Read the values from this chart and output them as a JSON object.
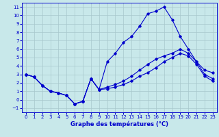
{
  "title": "Graphe des températures (°C)",
  "background_color": "#c8e8ea",
  "grid_color": "#a8c8cc",
  "line_color": "#0000cc",
  "xlim": [
    -0.5,
    23.5
  ],
  "ylim": [
    -1.5,
    11.5
  ],
  "xticks": [
    0,
    1,
    2,
    3,
    4,
    5,
    6,
    7,
    8,
    9,
    10,
    11,
    12,
    13,
    14,
    15,
    16,
    17,
    18,
    19,
    20,
    21,
    22,
    23
  ],
  "yticks": [
    -1,
    0,
    1,
    2,
    3,
    4,
    5,
    6,
    7,
    8,
    9,
    10,
    11
  ],
  "line1_x": [
    0,
    1,
    2,
    3,
    4,
    5,
    6,
    7,
    8,
    9,
    10,
    11,
    12,
    13,
    14,
    15,
    16,
    17,
    18,
    19,
    20,
    21,
    22,
    23
  ],
  "line1_y": [
    3.0,
    2.7,
    1.7,
    1.0,
    0.8,
    0.5,
    -0.5,
    -0.2,
    2.5,
    1.2,
    4.5,
    5.5,
    6.8,
    7.5,
    8.7,
    10.2,
    10.5,
    11.0,
    9.5,
    7.5,
    6.0,
    4.5,
    3.5,
    3.2
  ],
  "line2_x": [
    0,
    1,
    2,
    3,
    4,
    5,
    6,
    7,
    8,
    9,
    10,
    11,
    12,
    13,
    14,
    15,
    16,
    17,
    18,
    19,
    20,
    21,
    22,
    23
  ],
  "line2_y": [
    3.0,
    2.7,
    1.7,
    1.0,
    0.8,
    0.5,
    -0.5,
    -0.2,
    2.5,
    1.2,
    1.5,
    1.8,
    2.2,
    2.8,
    3.5,
    4.2,
    4.8,
    5.2,
    5.5,
    6.0,
    5.5,
    4.5,
    3.0,
    2.5
  ],
  "line3_x": [
    0,
    1,
    2,
    3,
    4,
    5,
    6,
    7,
    8,
    9,
    10,
    11,
    12,
    13,
    14,
    15,
    16,
    17,
    18,
    19,
    20,
    21,
    22,
    23
  ],
  "line3_y": [
    3.0,
    2.7,
    1.7,
    1.0,
    0.8,
    0.5,
    -0.5,
    -0.2,
    2.5,
    1.2,
    1.3,
    1.5,
    1.8,
    2.2,
    2.8,
    3.2,
    3.8,
    4.5,
    5.0,
    5.5,
    5.2,
    4.2,
    2.8,
    2.2
  ]
}
